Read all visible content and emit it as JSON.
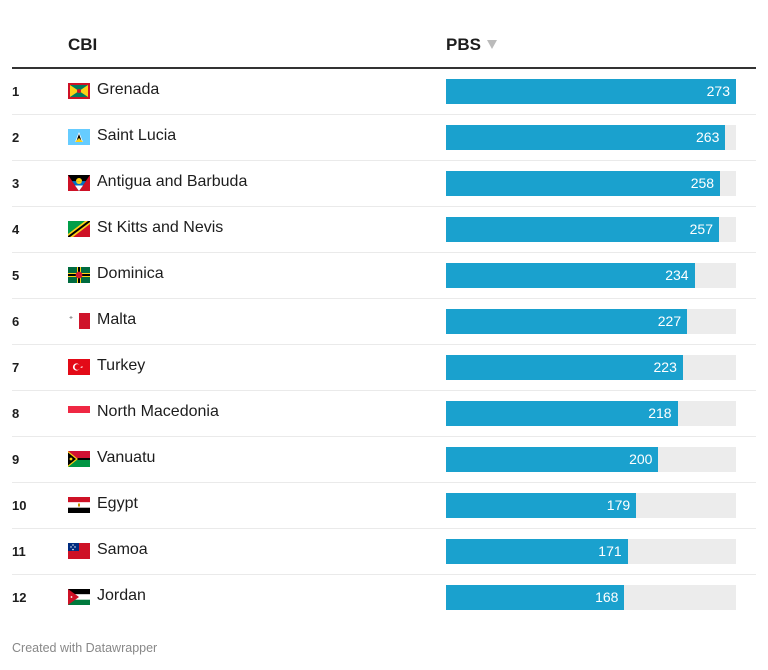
{
  "chart_data": {
    "type": "table",
    "columns": [
      "CBI",
      "PBS"
    ],
    "sort": {
      "column": "PBS",
      "direction": "descending"
    },
    "bar_scale": [
      0,
      273
    ],
    "colors": {
      "bar": "#1aa1ce",
      "bar_background": "#ececec",
      "header_rule": "#333333",
      "row_divider": "#eaeaea"
    },
    "rows": [
      {
        "rank": "1",
        "country": "Grenada",
        "flag": "grenada-flag",
        "value": 273
      },
      {
        "rank": "2",
        "country": "Saint Lucia",
        "flag": "saint-lucia-flag",
        "value": 263
      },
      {
        "rank": "3",
        "country": "Antigua and Barbuda",
        "flag": "antigua-barbuda-flag",
        "value": 258
      },
      {
        "rank": "4",
        "country": "St Kitts and Nevis",
        "flag": "st-kitts-nevis-flag",
        "value": 257
      },
      {
        "rank": "5",
        "country": "Dominica",
        "flag": "dominica-flag",
        "value": 234
      },
      {
        "rank": "6",
        "country": "Malta",
        "flag": "malta-flag",
        "value": 227
      },
      {
        "rank": "7",
        "country": "Turkey",
        "flag": "turkey-flag",
        "value": 223
      },
      {
        "rank": "8",
        "country": "North Macedonia",
        "flag": "north-macedonia-flag",
        "value": 218
      },
      {
        "rank": "9",
        "country": "Vanuatu",
        "flag": "vanuatu-flag",
        "value": 200
      },
      {
        "rank": "10",
        "country": "Egypt",
        "flag": "egypt-flag",
        "value": 179
      },
      {
        "rank": "11",
        "country": "Samoa",
        "flag": "samoa-flag",
        "value": 171
      },
      {
        "rank": "12",
        "country": "Jordan",
        "flag": "jordan-flag",
        "value": 168
      }
    ]
  },
  "header": {
    "col1": "CBI",
    "col2": "PBS",
    "sort_icon": "sort-descending-icon"
  },
  "footer": {
    "credit": "Created with Datawrapper"
  }
}
